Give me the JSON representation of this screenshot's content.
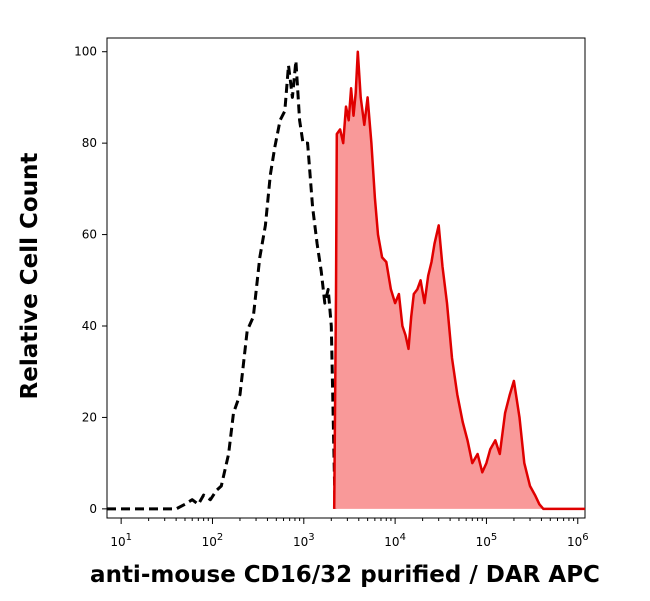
{
  "chart_data": {
    "type": "area",
    "xlabel": "anti-mouse CD16/32 purified / DAR APC",
    "ylabel": "Relative Cell Count",
    "xscale": "log",
    "xlim": [
      7,
      1200000
    ],
    "ylim": [
      -2,
      103
    ],
    "grid": false,
    "legend": "none",
    "y_ticks": [
      0,
      20,
      40,
      60,
      80,
      100
    ],
    "x_ticks": [
      {
        "base": "10",
        "exp": "1",
        "value": 10
      },
      {
        "base": "10",
        "exp": "2",
        "value": 100
      },
      {
        "base": "10",
        "exp": "3",
        "value": 1000
      },
      {
        "base": "10",
        "exp": "4",
        "value": 10000
      },
      {
        "base": "10",
        "exp": "5",
        "value": 100000
      },
      {
        "base": "10",
        "exp": "6",
        "value": 1000000
      }
    ],
    "series": [
      {
        "style": "dashed",
        "color": "#000000",
        "x": [
          7,
          40,
          50,
          60,
          70,
          80,
          95,
          110,
          125,
          150,
          170,
          200,
          240,
          280,
          330,
          380,
          430,
          480,
          550,
          620,
          680,
          750,
          820,
          900,
          980,
          1100,
          1250,
          1400,
          1550,
          1700,
          1850,
          2000,
          2100,
          2200
        ],
        "y": [
          0,
          0,
          1,
          2,
          1,
          3,
          2,
          4,
          5,
          12,
          21,
          25,
          39,
          42,
          55,
          62,
          73,
          79,
          85,
          87,
          97,
          90,
          98,
          85,
          80,
          80,
          66,
          58,
          52,
          45,
          48,
          40,
          20,
          0
        ]
      },
      {
        "style": "filled",
        "color": "#e00000",
        "fill": "#f99999",
        "x": [
          2150,
          2250,
          2300,
          2500,
          2700,
          2900,
          3100,
          3300,
          3500,
          3700,
          3900,
          4200,
          4600,
          5000,
          5500,
          6000,
          6500,
          7200,
          8000,
          9000,
          10000,
          11000,
          12000,
          13000,
          14000,
          15000,
          16000,
          17500,
          19000,
          21000,
          23000,
          25000,
          27000,
          30000,
          33000,
          37000,
          42000,
          48000,
          55000,
          62000,
          70000,
          80000,
          90000,
          100000,
          110000,
          125000,
          140000,
          160000,
          180000,
          200000,
          230000,
          260000,
          300000,
          340000,
          380000,
          420000,
          500000,
          1200000
        ],
        "y": [
          0,
          47,
          82,
          83,
          80,
          88,
          85,
          92,
          86,
          91,
          100,
          90,
          84,
          90,
          80,
          68,
          60,
          55,
          54,
          48,
          45,
          47,
          40,
          38,
          35,
          42,
          47,
          48,
          50,
          45,
          51,
          54,
          58,
          62,
          53,
          45,
          33,
          25,
          19,
          15,
          10,
          12,
          8,
          10,
          13,
          15,
          12,
          21,
          25,
          28,
          20,
          10,
          5,
          3,
          1,
          0,
          0,
          0
        ]
      }
    ]
  }
}
